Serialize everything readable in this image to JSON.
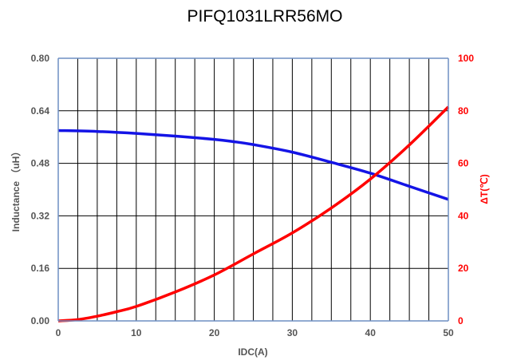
{
  "chart_data": {
    "type": "line",
    "title": "PIFQ1031LRR56MO",
    "xlabel": "IDC(A)",
    "ylabel_left": "Inductance （uH）",
    "ylabel_right": "ΔT(℃)",
    "xlim": [
      0,
      50
    ],
    "ylim_left": [
      0,
      0.8
    ],
    "ylim_right": [
      0,
      100
    ],
    "x_ticks": [
      "0",
      "10",
      "20",
      "30",
      "40",
      "50"
    ],
    "y_left_ticks": [
      "0.00",
      "0.16",
      "0.32",
      "0.48",
      "0.64",
      "0.80"
    ],
    "y_right_ticks": [
      "0",
      "20",
      "40",
      "60",
      "80",
      "100"
    ],
    "grid": true,
    "legend": "none",
    "colors": {
      "inductance": "#1414e6",
      "temperature": "#ff0000",
      "grid": "#000000",
      "frame": "#6f8fc4",
      "left_axis_text": "#555555",
      "right_axis_text": "#ff0000"
    },
    "series": [
      {
        "axis": "left",
        "x": [
          0,
          5,
          10,
          15,
          20,
          22.5,
          25,
          30,
          35,
          40,
          45,
          50
        ],
        "values": [
          0.58,
          0.577,
          0.571,
          0.563,
          0.553,
          0.546,
          0.537,
          0.514,
          0.483,
          0.45,
          0.41,
          0.37
        ]
      },
      {
        "axis": "right",
        "x": [
          0,
          2.5,
          5,
          7.5,
          10,
          15,
          20,
          25,
          30,
          35,
          40,
          45,
          50
        ],
        "values": [
          0,
          0.5,
          1.8,
          3.5,
          5.5,
          11,
          17.5,
          25.5,
          33.5,
          43,
          54,
          67,
          81.5
        ]
      }
    ]
  }
}
